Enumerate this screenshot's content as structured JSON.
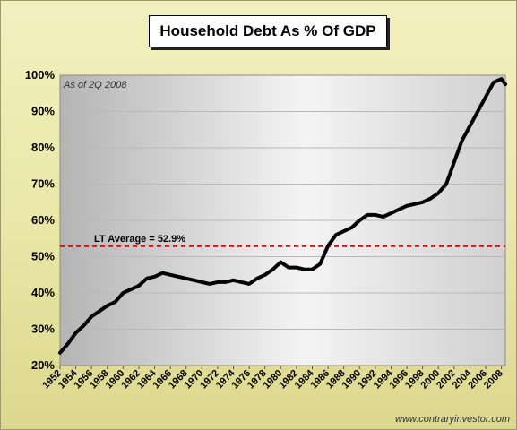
{
  "chart_data": {
    "type": "line",
    "title": "Household Debt As % Of GDP",
    "note": "As of 2Q 2008",
    "source": "www.contraryinvestor.com",
    "ylim": [
      20,
      100
    ],
    "xlim": [
      1952,
      2008.5
    ],
    "y_ticks": [
      "20%",
      "30%",
      "40%",
      "50%",
      "60%",
      "70%",
      "80%",
      "90%",
      "100%"
    ],
    "x_ticks": [
      "1952",
      "1954",
      "1956",
      "1958",
      "1960",
      "1962",
      "1964",
      "1966",
      "1968",
      "1970",
      "1972",
      "1974",
      "1976",
      "1978",
      "1980",
      "1982",
      "1984",
      "1986",
      "1988",
      "1990",
      "1992",
      "1994",
      "1996",
      "1998",
      "2000",
      "2002",
      "2004",
      "2006",
      "2008"
    ],
    "reference_line": {
      "label": "LT Average = 52.9%",
      "value": 52.9,
      "color": "#e00000",
      "style": "dashed"
    },
    "grid": true,
    "series": [
      {
        "color": "#000000",
        "x": [
          1952,
          1953,
          1954,
          1955,
          1956,
          1957,
          1958,
          1959,
          1960,
          1961,
          1962,
          1963,
          1964,
          1965,
          1966,
          1967,
          1968,
          1969,
          1970,
          1971,
          1972,
          1973,
          1974,
          1975,
          1976,
          1977,
          1978,
          1979,
          1980,
          1981,
          1982,
          1983,
          1984,
          1985,
          1986,
          1987,
          1988,
          1989,
          1990,
          1991,
          1992,
          1993,
          1994,
          1995,
          1996,
          1997,
          1998,
          1999,
          2000,
          2001,
          2002,
          2003,
          2004,
          2005,
          2006,
          2007,
          2008,
          2008.5
        ],
        "y": [
          23.5,
          26,
          29,
          31,
          33.5,
          35,
          36.5,
          37.5,
          40,
          41,
          42,
          44,
          44.5,
          45.5,
          45,
          44.5,
          44,
          43.5,
          43,
          42.5,
          43,
          43,
          43.5,
          43,
          42.5,
          44,
          45,
          46.5,
          48.5,
          47,
          47,
          46.5,
          46.5,
          48,
          53,
          56,
          57,
          58,
          60,
          61.5,
          61.5,
          61,
          62,
          63,
          64,
          64.5,
          65,
          66,
          67.5,
          70,
          76,
          82,
          86,
          90,
          94,
          98,
          99,
          97.5
        ]
      }
    ]
  }
}
